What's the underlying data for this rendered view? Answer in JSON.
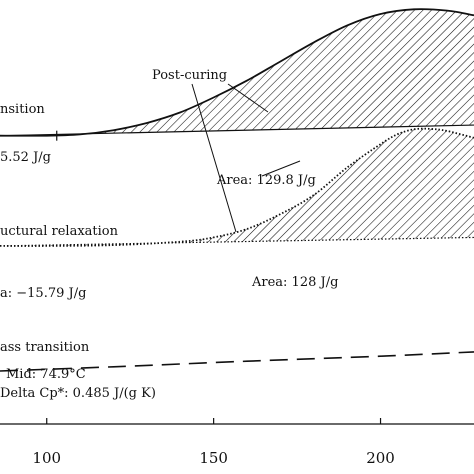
{
  "chart_data": {
    "type": "line",
    "title": "",
    "xlabel": "",
    "ylabel": "",
    "xlim": [
      86,
      228
    ],
    "ylim": [
      0,
      100
    ],
    "x_ticks": [
      "100",
      "150",
      "200"
    ],
    "grid": false,
    "labels": {
      "transition": "nsition",
      "transition_area": "5.52 J/g",
      "post_curing": "Post-curing",
      "post_area": "Area: 129.8 J/g",
      "relaxation": "uctural relaxation",
      "relax_area_left": "a: −15.79 J/g",
      "relax_area": "Area: 128 J/g",
      "glass": "ass transition",
      "mid": "Mid: 74.9°C",
      "delta_cp": "Delta Cp*: 0.485 J/(g K)"
    },
    "series": [
      {
        "style": "solid",
        "x": [
          86,
          100,
          110,
          120,
          130,
          140,
          150,
          160,
          170,
          180,
          190,
          200,
          210,
          220,
          228
        ],
        "y": [
          68,
          68,
          68.3,
          69.3,
          71,
          73.5,
          77,
          81,
          85.5,
          90,
          94,
          96.7,
          97.8,
          97.5,
          96.4
        ]
      },
      {
        "style": "dotted",
        "x": [
          86,
          100,
          120,
          140,
          150,
          160,
          170,
          180,
          190,
          200,
          205,
          210,
          215,
          220,
          228
        ],
        "y": [
          42,
          42,
          42.2,
          43,
          44,
          46,
          49.5,
          54,
          60.5,
          66,
          68.3,
          69.5,
          69.6,
          69.1,
          67.5
        ]
      },
      {
        "style": "dashed",
        "x": [
          86,
          120,
          160,
          200,
          228
        ],
        "y": [
          12.5,
          13.5,
          14.8,
          16,
          17
        ]
      }
    ],
    "baselines": [
      {
        "style": "solid",
        "x": [
          86,
          228
        ],
        "y": [
          68,
          70.5
        ]
      },
      {
        "style": "dotted",
        "x": [
          86,
          228
        ],
        "y": [
          42,
          44
        ]
      }
    ]
  }
}
